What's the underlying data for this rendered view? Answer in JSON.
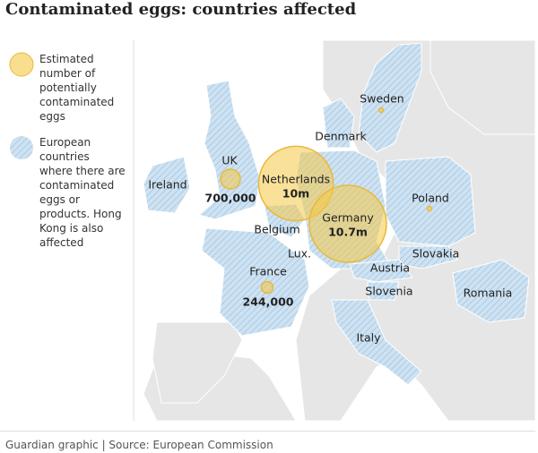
{
  "title": "Contaminated eggs: countries affected",
  "legend": [
    {
      "text": "Estimated number of potentially contaminated eggs"
    },
    {
      "text": "European countries where there are contaminated eggs or products. Hong Kong is also affected"
    }
  ],
  "map": {
    "bubbles": [
      {
        "country": "UK",
        "value": 700000,
        "value_label": "700,000"
      },
      {
        "country": "Netherlands",
        "value": 10000000,
        "value_label": "10m"
      },
      {
        "country": "Germany",
        "value": 10700000,
        "value_label": "10.7m"
      },
      {
        "country": "France",
        "value": 244000,
        "value_label": "244,000"
      },
      {
        "country": "Sweden",
        "value": 35000
      },
      {
        "country": "Poland",
        "value": 35000
      }
    ],
    "country_labels": [
      "Ireland",
      "Denmark",
      "Belgium",
      "Lux.",
      "Austria",
      "Slovakia",
      "Slovenia",
      "Romania",
      "Italy"
    ]
  },
  "footer": "Guardian graphic | Source: European Commission"
}
